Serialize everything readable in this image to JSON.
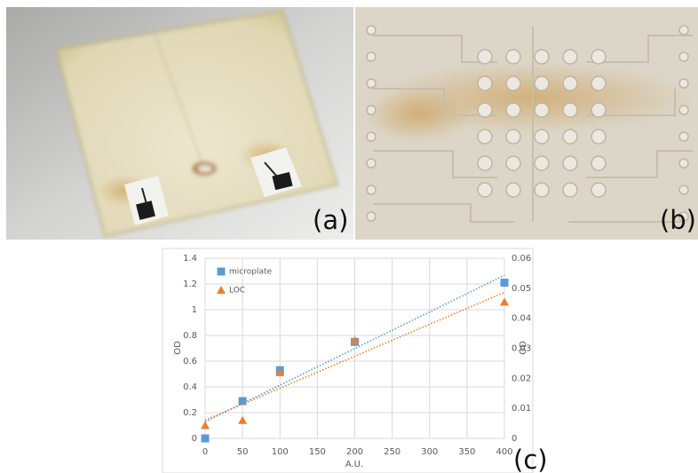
{
  "panel_labels": [
    "(a)",
    "(b)",
    "(c)"
  ],
  "chart_data": {
    "type": "scatter",
    "xlabel": "A.U.",
    "ylabel": "OD",
    "y2label": "OD",
    "x": [
      0,
      50,
      100,
      200,
      400
    ],
    "series": [
      {
        "name": "microplate",
        "color": "#5b9bd5",
        "marker": "square",
        "values": [
          0,
          0.29,
          0.53,
          0.75,
          1.21
        ]
      },
      {
        "name": "LOC",
        "color": "#ed7d31",
        "marker": "triangle",
        "axis": "y2",
        "values": [
          0.0043,
          0.006,
          0.0219,
          0.0326,
          0.0454
        ]
      }
    ],
    "trendline": "linear",
    "xlim": [
      0,
      400
    ],
    "xticks": [
      0,
      50,
      100,
      150,
      200,
      250,
      300,
      350,
      400
    ],
    "ylim": [
      0,
      1.4
    ],
    "yticks": [
      0,
      0.2,
      0.4,
      0.6,
      0.8,
      1,
      1.2,
      1.4
    ],
    "y2lim": [
      0,
      0.06
    ],
    "y2ticks": [
      0,
      0.01,
      0.02,
      0.03,
      0.04,
      0.05,
      0.06
    ],
    "grid": true,
    "legend": "top-left"
  }
}
